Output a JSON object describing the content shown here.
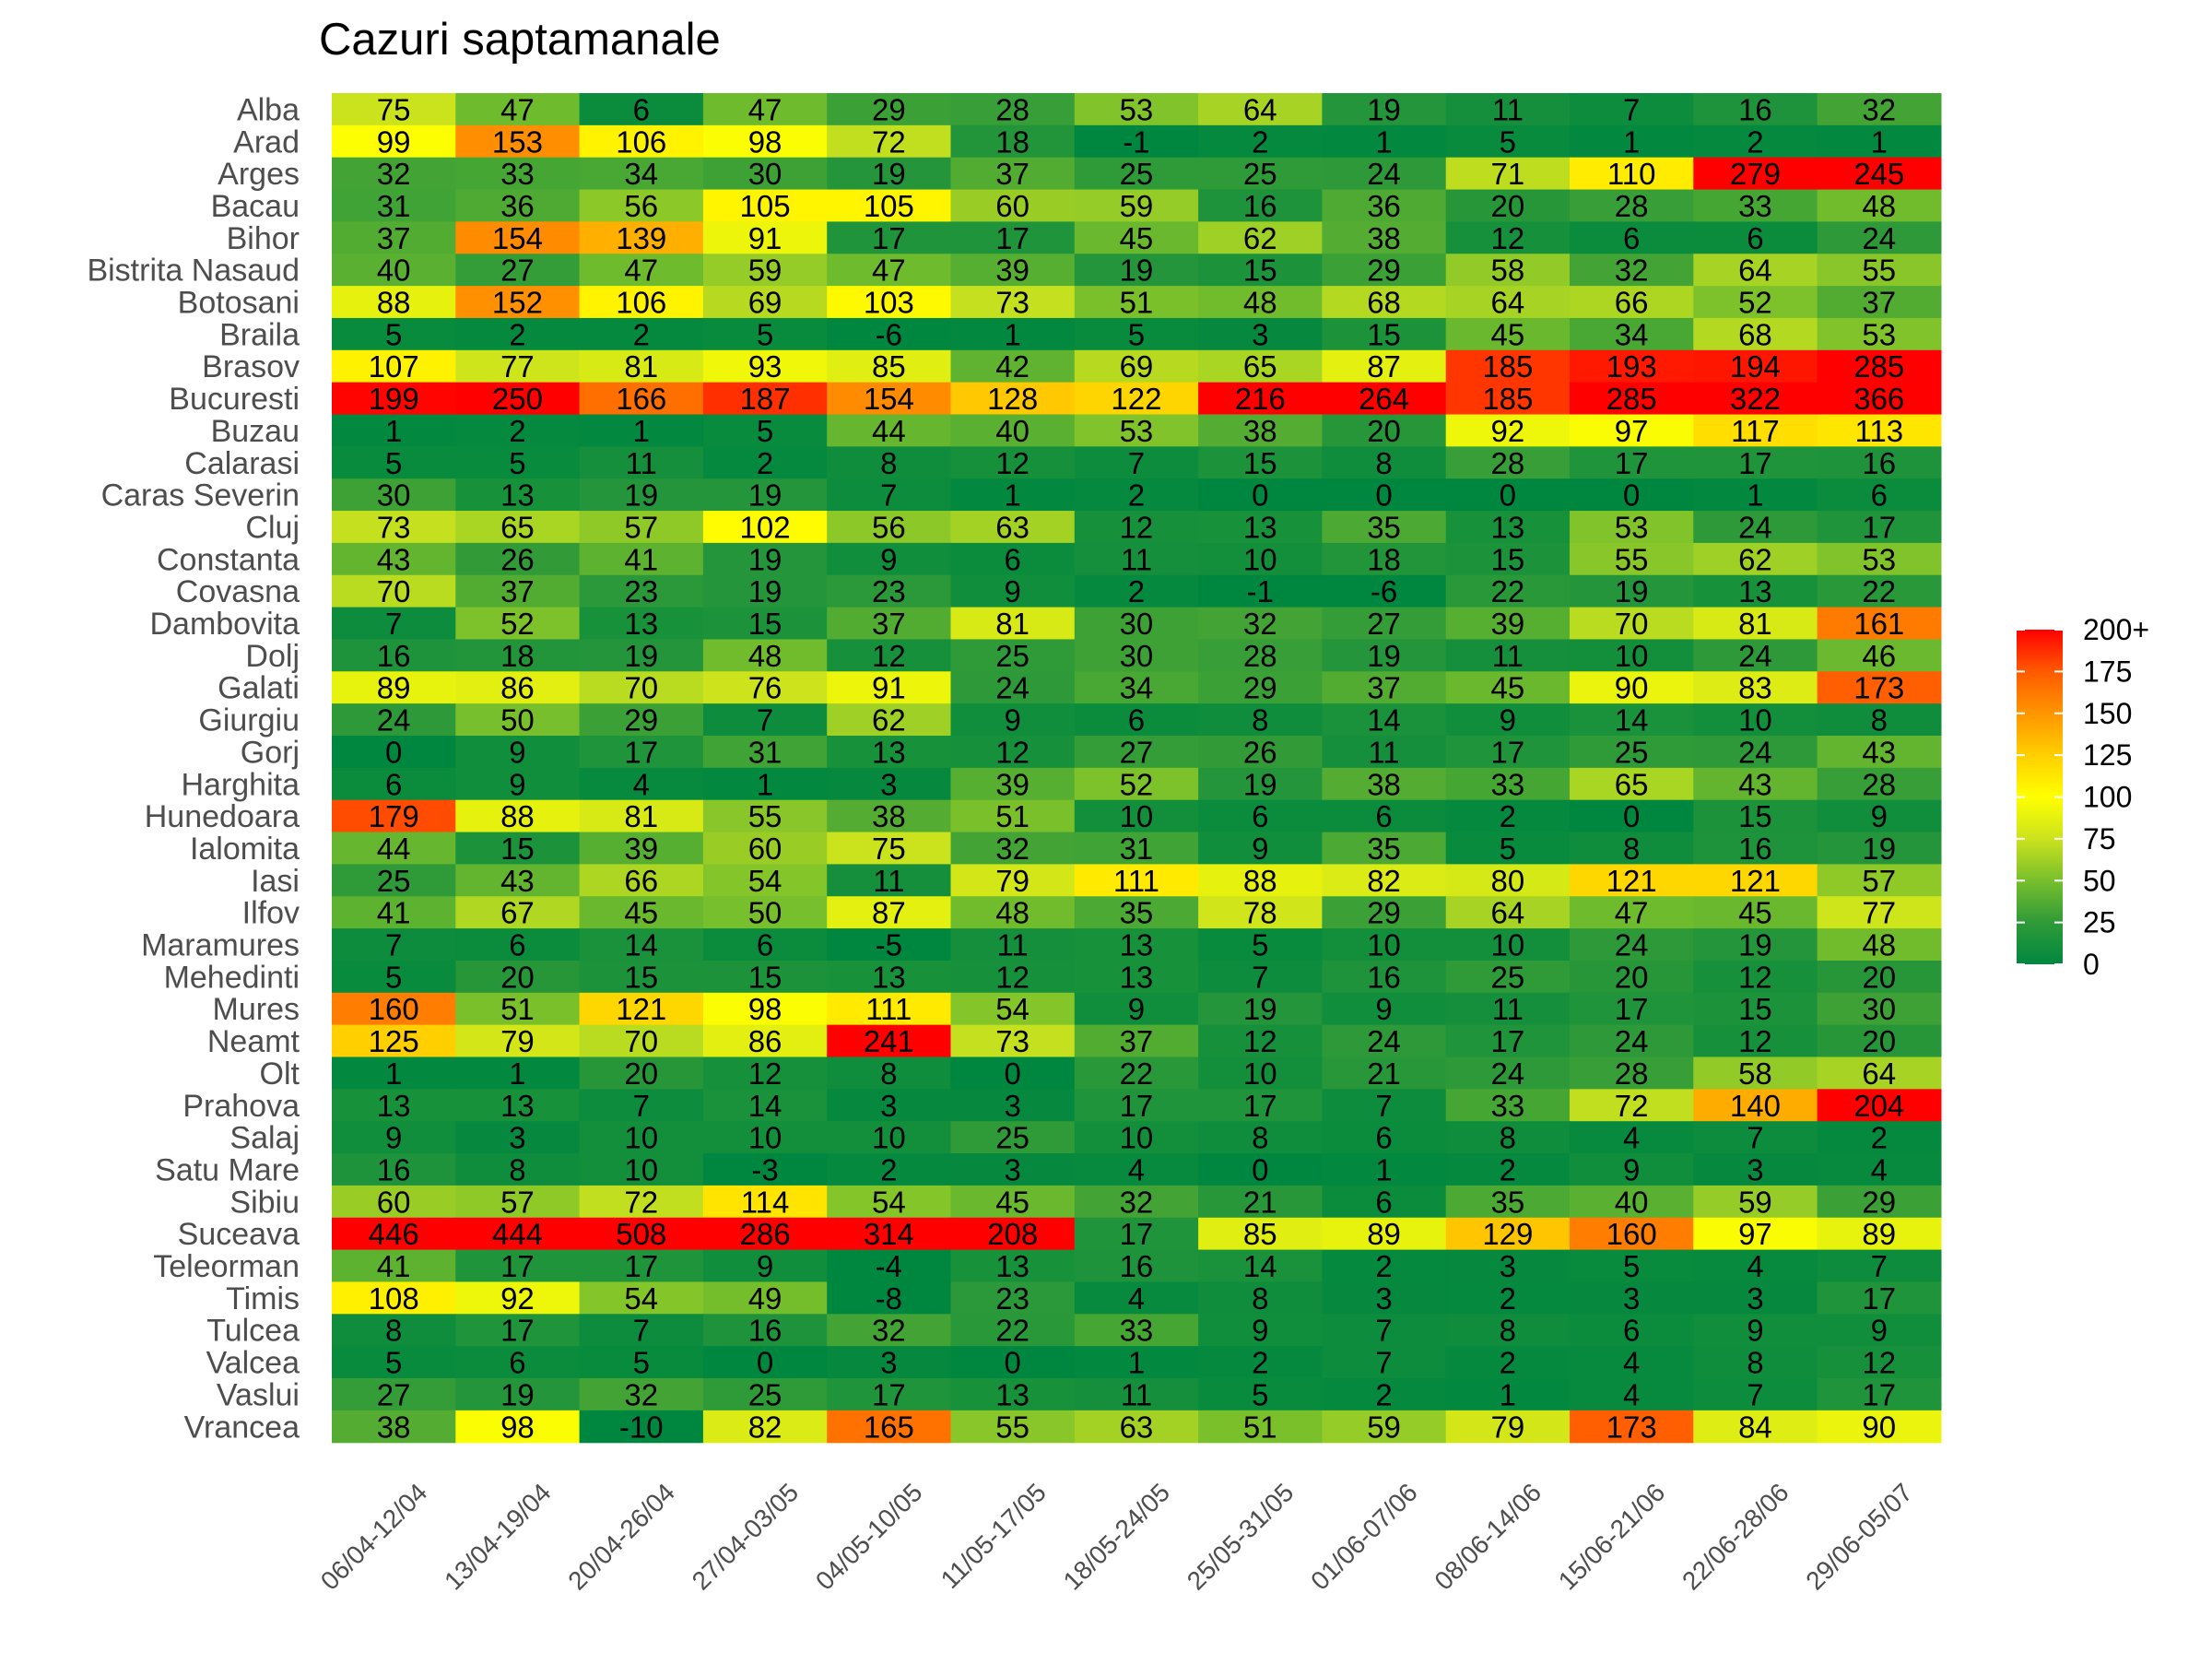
{
  "chart_data": {
    "type": "heatmap",
    "title": "Cazuri saptamanale",
    "xlabel": "",
    "ylabel": "",
    "x": [
      "06/04-12/04",
      "13/04-19/04",
      "20/04-26/04",
      "27/04-03/05",
      "04/05-10/05",
      "11/05-17/05",
      "18/05-24/05",
      "25/05-31/05",
      "01/06-07/06",
      "08/06-14/06",
      "15/06-21/06",
      "22/06-28/06",
      "29/06-05/07"
    ],
    "y": [
      "Alba",
      "Arad",
      "Arges",
      "Bacau",
      "Bihor",
      "Bistrita Nasaud",
      "Botosani",
      "Braila",
      "Brasov",
      "Bucuresti",
      "Buzau",
      "Calarasi",
      "Caras Severin",
      "Cluj",
      "Constanta",
      "Covasna",
      "Dambovita",
      "Dolj",
      "Galati",
      "Giurgiu",
      "Gorj",
      "Harghita",
      "Hunedoara",
      "Ialomita",
      "Iasi",
      "Ilfov",
      "Maramures",
      "Mehedinti",
      "Mures",
      "Neamt",
      "Olt",
      "Prahova",
      "Salaj",
      "Satu Mare",
      "Sibiu",
      "Suceava",
      "Teleorman",
      "Timis",
      "Tulcea",
      "Valcea",
      "Vaslui",
      "Vrancea"
    ],
    "values": [
      [
        75,
        47,
        6,
        47,
        29,
        28,
        53,
        64,
        19,
        11,
        7,
        16,
        32
      ],
      [
        99,
        153,
        106,
        98,
        72,
        18,
        -1,
        2,
        1,
        5,
        1,
        2,
        1
      ],
      [
        32,
        33,
        34,
        30,
        19,
        37,
        25,
        25,
        24,
        71,
        110,
        279,
        245
      ],
      [
        31,
        36,
        56,
        105,
        105,
        60,
        59,
        16,
        36,
        20,
        28,
        33,
        48
      ],
      [
        37,
        154,
        139,
        91,
        17,
        17,
        45,
        62,
        38,
        12,
        6,
        6,
        24
      ],
      [
        40,
        27,
        47,
        59,
        47,
        39,
        19,
        15,
        29,
        58,
        32,
        64,
        55
      ],
      [
        88,
        152,
        106,
        69,
        103,
        73,
        51,
        48,
        68,
        64,
        66,
        52,
        37
      ],
      [
        5,
        2,
        2,
        5,
        -6,
        1,
        5,
        3,
        15,
        45,
        34,
        68,
        53
      ],
      [
        107,
        77,
        81,
        93,
        85,
        42,
        69,
        65,
        87,
        185,
        193,
        194,
        285
      ],
      [
        199,
        250,
        166,
        187,
        154,
        128,
        122,
        216,
        264,
        185,
        285,
        322,
        366
      ],
      [
        1,
        2,
        1,
        5,
        44,
        40,
        53,
        38,
        20,
        92,
        97,
        117,
        113
      ],
      [
        5,
        5,
        11,
        2,
        8,
        12,
        7,
        15,
        8,
        28,
        17,
        17,
        16
      ],
      [
        30,
        13,
        19,
        19,
        7,
        1,
        2,
        0,
        0,
        0,
        0,
        1,
        6
      ],
      [
        73,
        65,
        57,
        102,
        56,
        63,
        12,
        13,
        35,
        13,
        53,
        24,
        17
      ],
      [
        43,
        26,
        41,
        19,
        9,
        6,
        11,
        10,
        18,
        15,
        55,
        62,
        53
      ],
      [
        70,
        37,
        23,
        19,
        23,
        9,
        2,
        -1,
        -6,
        22,
        19,
        13,
        22
      ],
      [
        7,
        52,
        13,
        15,
        37,
        81,
        30,
        32,
        27,
        39,
        70,
        81,
        161
      ],
      [
        16,
        18,
        19,
        48,
        12,
        25,
        30,
        28,
        19,
        11,
        10,
        24,
        46
      ],
      [
        89,
        86,
        70,
        76,
        91,
        24,
        34,
        29,
        37,
        45,
        90,
        83,
        173
      ],
      [
        24,
        50,
        29,
        7,
        62,
        9,
        6,
        8,
        14,
        9,
        14,
        10,
        8
      ],
      [
        0,
        9,
        17,
        31,
        13,
        12,
        27,
        26,
        11,
        17,
        25,
        24,
        43
      ],
      [
        6,
        9,
        4,
        1,
        3,
        39,
        52,
        19,
        38,
        33,
        65,
        43,
        28
      ],
      [
        179,
        88,
        81,
        55,
        38,
        51,
        10,
        6,
        6,
        2,
        0,
        15,
        9
      ],
      [
        44,
        15,
        39,
        60,
        75,
        32,
        31,
        9,
        35,
        5,
        8,
        16,
        19
      ],
      [
        25,
        43,
        66,
        54,
        11,
        79,
        111,
        88,
        82,
        80,
        121,
        121,
        57
      ],
      [
        41,
        67,
        45,
        50,
        87,
        48,
        35,
        78,
        29,
        64,
        47,
        45,
        77
      ],
      [
        7,
        6,
        14,
        6,
        -5,
        11,
        13,
        5,
        10,
        10,
        24,
        19,
        48
      ],
      [
        5,
        20,
        15,
        15,
        13,
        12,
        13,
        7,
        16,
        25,
        20,
        12,
        20
      ],
      [
        160,
        51,
        121,
        98,
        111,
        54,
        9,
        19,
        9,
        11,
        17,
        15,
        30
      ],
      [
        125,
        79,
        70,
        86,
        241,
        73,
        37,
        12,
        24,
        17,
        24,
        12,
        20
      ],
      [
        1,
        1,
        20,
        12,
        8,
        0,
        22,
        10,
        21,
        24,
        28,
        58,
        64
      ],
      [
        13,
        13,
        7,
        14,
        3,
        3,
        17,
        17,
        7,
        33,
        72,
        140,
        204
      ],
      [
        9,
        3,
        10,
        10,
        10,
        25,
        10,
        8,
        6,
        8,
        4,
        7,
        2
      ],
      [
        16,
        8,
        10,
        -3,
        2,
        3,
        4,
        0,
        1,
        2,
        9,
        3,
        4
      ],
      [
        60,
        57,
        72,
        114,
        54,
        45,
        32,
        21,
        6,
        35,
        40,
        59,
        29
      ],
      [
        446,
        444,
        508,
        286,
        314,
        208,
        17,
        85,
        89,
        129,
        160,
        97,
        89
      ],
      [
        41,
        17,
        17,
        9,
        -4,
        13,
        16,
        14,
        2,
        3,
        5,
        4,
        7
      ],
      [
        108,
        92,
        54,
        49,
        -8,
        23,
        4,
        8,
        3,
        2,
        3,
        3,
        17
      ],
      [
        8,
        17,
        7,
        16,
        32,
        22,
        33,
        9,
        7,
        8,
        6,
        9,
        9
      ],
      [
        5,
        6,
        5,
        0,
        3,
        0,
        1,
        2,
        7,
        2,
        4,
        8,
        12
      ],
      [
        27,
        19,
        32,
        25,
        17,
        13,
        11,
        5,
        2,
        1,
        4,
        7,
        17
      ],
      [
        38,
        98,
        -10,
        82,
        165,
        55,
        63,
        51,
        59,
        79,
        173,
        84,
        90
      ]
    ],
    "color_scale": {
      "min": 0,
      "max": 200,
      "stops": [
        "#00873f",
        "#2f9a38",
        "#77bf2c",
        "#cbe31d",
        "#ffff00",
        "#ffcf00",
        "#ff9500",
        "#ff5a00",
        "#ff0000"
      ]
    },
    "legend": {
      "position": "right",
      "ticks": [
        "200+",
        "175",
        "150",
        "125",
        "100",
        "75",
        "50",
        "25",
        "0"
      ],
      "tick_values": [
        200,
        175,
        150,
        125,
        100,
        75,
        50,
        25,
        0
      ]
    },
    "grid": false
  }
}
